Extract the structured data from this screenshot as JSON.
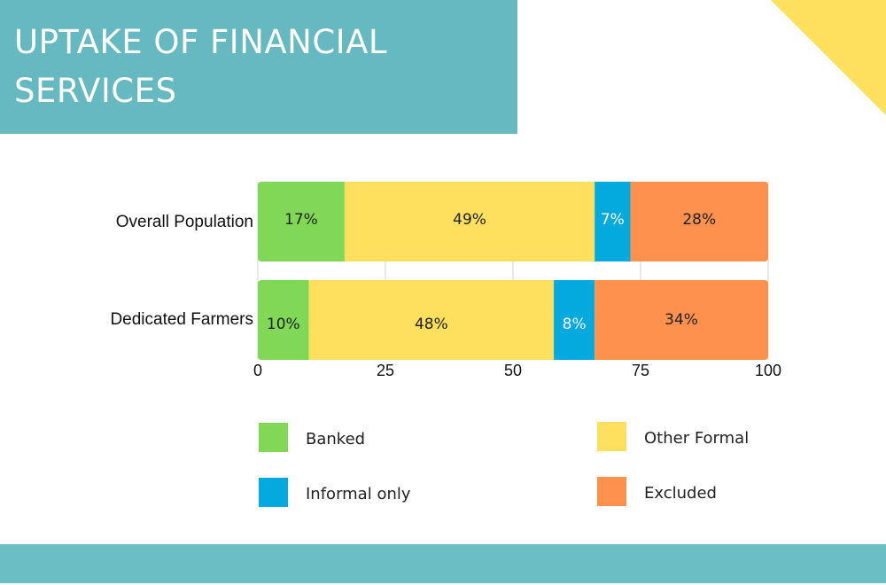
{
  "page": {
    "title": "UPTAKE OF FINANCIAL SERVICES"
  },
  "colors": {
    "title_box": "#66b8c1",
    "footer_band": "#6bbfc4",
    "corner_triangle": "#fee05e"
  },
  "chart_data": {
    "type": "bar",
    "orientation": "horizontal",
    "stacked": true,
    "title": "",
    "xlabel": "",
    "ylabel": "",
    "categories": [
      "Overall Population",
      "Dedicated Farmers"
    ],
    "xlim": [
      0,
      100
    ],
    "x_ticks": [
      0,
      25,
      50,
      75,
      100
    ],
    "grid": true,
    "legend_position": "bottom",
    "series": [
      {
        "name": "Banked",
        "color": "#80d856",
        "values": [
          17,
          10
        ],
        "labels": [
          "17%",
          "10%"
        ],
        "label_color": "#222222"
      },
      {
        "name": "Other Formal",
        "color": "#fee05e",
        "values": [
          49,
          48
        ],
        "labels": [
          "49%",
          "48%"
        ],
        "label_color": "#222222"
      },
      {
        "name": "Informal only",
        "color": "#04aadd",
        "values": [
          7,
          8
        ],
        "labels": [
          "7%",
          "8%"
        ],
        "label_color": "#ffffff"
      },
      {
        "name": "Excluded",
        "color": "#fe914e",
        "values": [
          28,
          34
        ],
        "labels": [
          "28%",
          "34%"
        ],
        "label_color": "#222222"
      }
    ]
  }
}
